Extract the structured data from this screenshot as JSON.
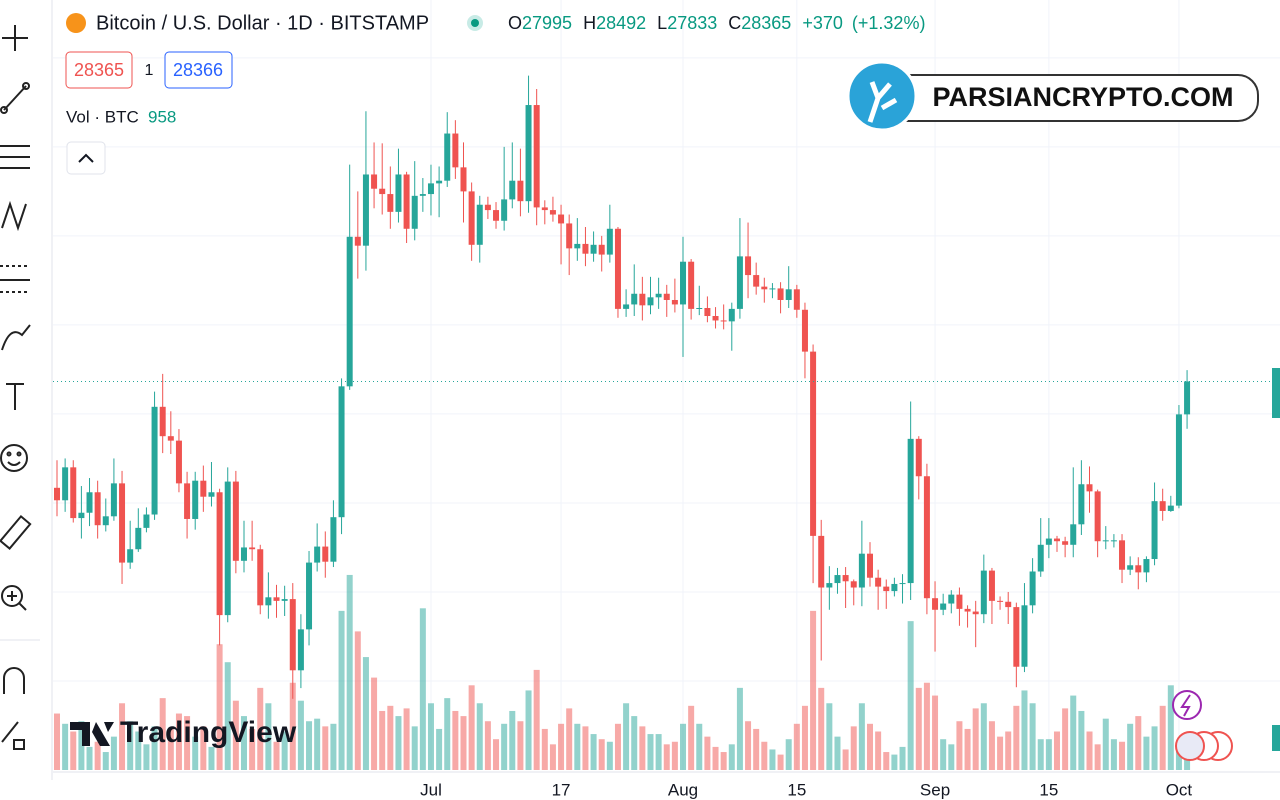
{
  "chart_data": {
    "type": "candlestick",
    "title": "Bitcoin / U.S. Dollar · 1D · BITSTAMP",
    "header": {
      "open_label": "O",
      "open": 27995,
      "high_label": "H",
      "high": 28492,
      "low_label": "L",
      "low": 27833,
      "close_label": "C",
      "close": 28365,
      "change": "+370",
      "change_pct": "(+1.32%)"
    },
    "sell_price": 28365,
    "spread": 1,
    "buy_price": 28366,
    "volume_label": "Vol · BTC",
    "volume_last": 958,
    "watermark": "PARSIANCRYPTO.COM",
    "brand": "TradingView",
    "up_color": "#26a69a",
    "down_color": "#ef5350",
    "ylim": [
      24000,
      32650
    ],
    "grid_levels": [
      25000,
      26000,
      27000,
      28000,
      29000,
      30000,
      31000,
      32000
    ],
    "volume_lim": [
      0,
      30000
    ],
    "categories": [
      null,
      null,
      null,
      null,
      null,
      null,
      null,
      null,
      null,
      null,
      null,
      null,
      null,
      null,
      null,
      null,
      null,
      null,
      null,
      null,
      null,
      null,
      null,
      null,
      null,
      null,
      null,
      null,
      null,
      null,
      null,
      null,
      null,
      null,
      null,
      null,
      null,
      null,
      null,
      null,
      null,
      null,
      null,
      null,
      null,
      null,
      "Jul",
      null,
      null,
      null,
      null,
      null,
      null,
      null,
      null,
      null,
      null,
      null,
      null,
      null,
      null,
      null,
      "17",
      null,
      null,
      null,
      null,
      null,
      null,
      null,
      null,
      null,
      null,
      null,
      null,
      null,
      null,
      "Aug",
      null,
      null,
      null,
      null,
      null,
      null,
      null,
      null,
      null,
      null,
      null,
      null,
      null,
      "15",
      null,
      null,
      null,
      null,
      null,
      null,
      null,
      null,
      null,
      null,
      null,
      null,
      null,
      null,
      null,
      null,
      "Sep",
      null,
      null,
      null,
      null,
      null,
      null,
      null,
      null,
      null,
      null,
      null,
      null,
      null,
      "15",
      null,
      null,
      null,
      null,
      null,
      null,
      null,
      null,
      null,
      null,
      null,
      null,
      null,
      null,
      null,
      "Oct",
      null
    ],
    "open": [
      27170,
      27030,
      27400,
      26830,
      26890,
      27120,
      26750,
      26850,
      27220,
      26330,
      26480,
      26720,
      26870,
      28080,
      27750,
      27700,
      27220,
      26820,
      27250,
      27070,
      27120,
      25740,
      27240,
      26350,
      26500,
      26480,
      25850,
      25940,
      25900,
      25920,
      25120,
      25580,
      26330,
      26510,
      26340,
      26840,
      28310,
      29990,
      29890,
      30690,
      30530,
      30470,
      30270,
      30690,
      30080,
      30450,
      30470,
      30590,
      30620,
      31150,
      30770,
      30500,
      29900,
      30350,
      30290,
      30170,
      30410,
      30620,
      30390,
      31470,
      30320,
      30290,
      30240,
      30140,
      29860,
      29910,
      29800,
      29900,
      29790,
      30080,
      29180,
      29230,
      29350,
      29220,
      29310,
      29350,
      29280,
      29230,
      29710,
      29180,
      29190,
      29100,
      29050,
      29040,
      29180,
      29770,
      29560,
      29430,
      29400,
      29410,
      29280,
      29400,
      29170,
      28700,
      26630,
      26050,
      26100,
      26190,
      26120,
      26050,
      26430,
      26160,
      26060,
      26010,
      26090,
      26100,
      27720,
      27300,
      25930,
      25800,
      25870,
      25970,
      25810,
      25780,
      25750,
      26240,
      25900,
      25890,
      25830,
      25160,
      25850,
      26230,
      26530,
      26600,
      26570,
      26530,
      26760,
      27210,
      27130,
      26570,
      26580,
      26580,
      26250,
      26300,
      26220,
      26370,
      27020,
      26910,
      26970,
      27995
    ],
    "high": [
      27480,
      27500,
      27480,
      27190,
      27280,
      27250,
      27050,
      27500,
      27360,
      26800,
      26940,
      26950,
      28250,
      28450,
      28030,
      27830,
      27350,
      27350,
      27420,
      27460,
      27160,
      27400,
      27360,
      26800,
      26800,
      26530,
      26220,
      26080,
      26070,
      26100,
      25750,
      26460,
      26770,
      26680,
      27030,
      28400,
      30800,
      30500,
      31400,
      31050,
      31040,
      30780,
      30980,
      30720,
      30840,
      30650,
      30800,
      30780,
      31390,
      31300,
      31050,
      30600,
      30450,
      30440,
      30380,
      31000,
      31050,
      30980,
      31800,
      31650,
      30400,
      30440,
      30350,
      30240,
      30200,
      30100,
      30050,
      30000,
      30350,
      30100,
      29400,
      29680,
      29540,
      29540,
      29530,
      29450,
      29520,
      29990,
      29740,
      29440,
      29320,
      29200,
      29230,
      29250,
      30200,
      30150,
      29700,
      29530,
      29470,
      29480,
      29660,
      29450,
      29250,
      28780,
      26810,
      26290,
      26270,
      26280,
      26140,
      26800,
      26560,
      26250,
      26140,
      26160,
      26200,
      28140,
      27750,
      27440,
      26120,
      25980,
      26020,
      26050,
      25850,
      25900,
      26420,
      26270,
      25950,
      26000,
      25880,
      26100,
      26380,
      26830,
      26830,
      26630,
      26620,
      27400,
      27480,
      27410,
      27150,
      26740,
      26650,
      26650,
      26400,
      26390,
      26400,
      27230,
      27160,
      27080,
      28100,
      28492
    ],
    "low": [
      26850,
      26900,
      26780,
      26600,
      26740,
      26600,
      26680,
      26800,
      26090,
      26260,
      26450,
      26670,
      26810,
      27560,
      27550,
      27120,
      26600,
      26700,
      26900,
      26960,
      25400,
      25660,
      26210,
      26220,
      26350,
      25750,
      25700,
      25710,
      25730,
      24800,
      24920,
      25400,
      26230,
      26160,
      26280,
      26650,
      28270,
      29520,
      29610,
      30310,
      30240,
      30080,
      30150,
      29920,
      29950,
      30270,
      30230,
      30210,
      30550,
      30640,
      30150,
      29720,
      29700,
      30190,
      30080,
      30060,
      30310,
      30220,
      30260,
      30120,
      30130,
      30160,
      29680,
      29560,
      29720,
      29660,
      29710,
      29600,
      29700,
      29080,
      29090,
      29100,
      29050,
      29120,
      29180,
      29090,
      29140,
      28640,
      29060,
      29110,
      29030,
      28960,
      28950,
      28710,
      29070,
      29300,
      29340,
      29250,
      29300,
      29130,
      29190,
      29080,
      28400,
      26100,
      25230,
      25800,
      25980,
      25820,
      25850,
      25840,
      26060,
      25800,
      25810,
      25950,
      25870,
      25910,
      27040,
      25750,
      25330,
      25740,
      25760,
      25620,
      25600,
      25380,
      25650,
      25640,
      25800,
      25640,
      24930,
      25100,
      25760,
      26170,
      26380,
      26450,
      26390,
      26390,
      26640,
      26890,
      26390,
      26480,
      26500,
      26100,
      26190,
      26030,
      26110,
      26300,
      26800,
      26900,
      26940,
      27833
    ],
    "close": [
      27030,
      27400,
      26830,
      26890,
      27120,
      26750,
      26850,
      27220,
      26330,
      26480,
      26720,
      26870,
      28080,
      27750,
      27700,
      27220,
      26820,
      27250,
      27070,
      27120,
      25740,
      27240,
      26350,
      26500,
      26480,
      25850,
      25940,
      25900,
      25920,
      25120,
      25580,
      26330,
      26510,
      26340,
      26840,
      28310,
      29990,
      29890,
      30690,
      30530,
      30470,
      30270,
      30690,
      30080,
      30450,
      30470,
      30590,
      30620,
      31150,
      30770,
      30500,
      29900,
      30350,
      30290,
      30170,
      30410,
      30620,
      30390,
      31470,
      30320,
      30290,
      30240,
      30140,
      29860,
      29910,
      29800,
      29900,
      29790,
      30080,
      29180,
      29230,
      29350,
      29220,
      29310,
      29350,
      29280,
      29230,
      29710,
      29180,
      29190,
      29100,
      29050,
      29040,
      29180,
      29770,
      29560,
      29430,
      29400,
      29410,
      29280,
      29400,
      29170,
      28700,
      26630,
      26050,
      26100,
      26190,
      26120,
      26050,
      26430,
      26160,
      26060,
      26010,
      26090,
      26100,
      27720,
      27300,
      25930,
      25800,
      25870,
      25970,
      25810,
      25780,
      25750,
      26240,
      25900,
      25890,
      25830,
      25160,
      25850,
      26230,
      26530,
      26600,
      26570,
      26530,
      26760,
      27210,
      27130,
      26570,
      26580,
      26580,
      26250,
      26300,
      26220,
      26370,
      27020,
      26910,
      26970,
      27995,
      28365
    ],
    "volume": [
      2200,
      1800,
      1500,
      1900,
      900,
      1100,
      700,
      1300,
      2600,
      1900,
      1500,
      1000,
      1700,
      2800,
      1600,
      2200,
      2100,
      1300,
      1700,
      900,
      4900,
      4200,
      2700,
      2100,
      1600,
      3200,
      2600,
      1100,
      1500,
      3400,
      2700,
      1900,
      2000,
      1700,
      1800,
      6200,
      7600,
      5400,
      4400,
      3600,
      2300,
      2500,
      2100,
      2400,
      1700,
      6300,
      2600,
      1600,
      2800,
      2300,
      2100,
      3300,
      2600,
      1900,
      1200,
      1800,
      2300,
      1900,
      3100,
      3900,
      1600,
      1000,
      1800,
      2400,
      1800,
      1700,
      1400,
      1200,
      1100,
      1800,
      2600,
      2100,
      1700,
      1400,
      1400,
      1000,
      1100,
      1800,
      2500,
      1800,
      1300,
      900,
      700,
      1000,
      3200,
      1900,
      1600,
      1100,
      800,
      600,
      1200,
      1800,
      2500,
      6200,
      3200,
      2600,
      1300,
      800,
      1700,
      2600,
      1800,
      1500,
      700,
      600,
      900,
      5800,
      3200,
      3400,
      2900,
      1200,
      1000,
      1900,
      1600,
      2400,
      2600,
      1900,
      1300,
      1500,
      2500,
      3100,
      2600,
      1200,
      1200,
      1500,
      2400,
      2900,
      2300,
      1500,
      1000,
      2000,
      1200,
      1100,
      1800,
      2100,
      1300,
      1700,
      2500,
      3300,
      1000,
      958
    ]
  }
}
